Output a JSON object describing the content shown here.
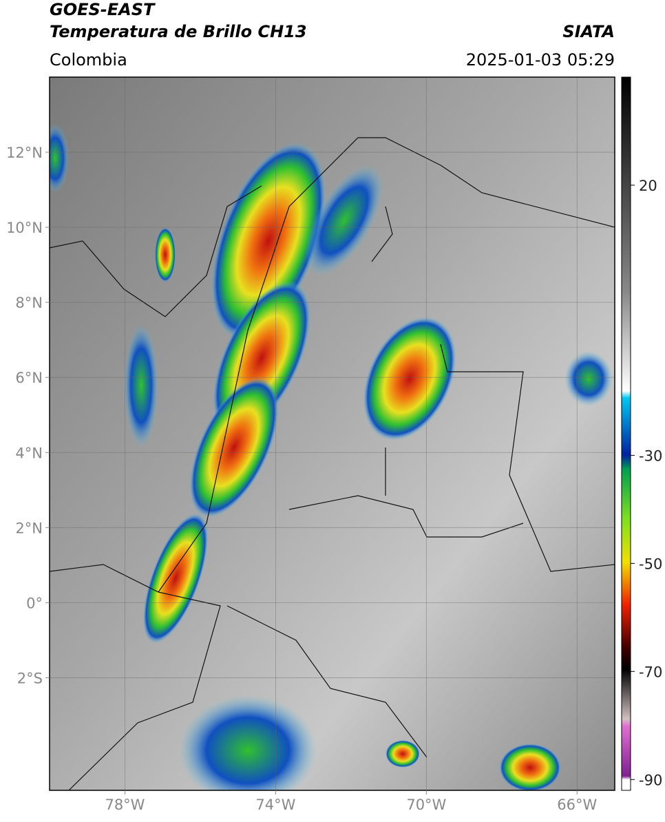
{
  "header": {
    "title": "GOES-EAST",
    "product": "Temperatura de Brillo CH13",
    "source": "SIATA",
    "region": "Colombia",
    "datetime": "2025-01-03 05:29"
  },
  "map": {
    "xlim": [
      -80,
      -65
    ],
    "ylim": [
      -5,
      14
    ],
    "grid": true,
    "xticks": [
      {
        "value": -78,
        "label": "78°W"
      },
      {
        "value": -74,
        "label": "74°W"
      },
      {
        "value": -70,
        "label": "70°W"
      },
      {
        "value": -66,
        "label": "66°W"
      }
    ],
    "yticks": [
      {
        "value": 12,
        "label": "12°N"
      },
      {
        "value": 10,
        "label": "10°N"
      },
      {
        "value": 8,
        "label": "8°N"
      },
      {
        "value": 6,
        "label": "6°N"
      },
      {
        "value": 4,
        "label": "4°N"
      },
      {
        "value": 2,
        "label": "2°N"
      },
      {
        "value": 0,
        "label": "0°"
      },
      {
        "value": -2,
        "label": "2°S"
      }
    ]
  },
  "colorbar": {
    "lim": [
      -92,
      40
    ],
    "ticks": [
      20,
      -30,
      -50,
      -70,
      -90
    ]
  }
}
